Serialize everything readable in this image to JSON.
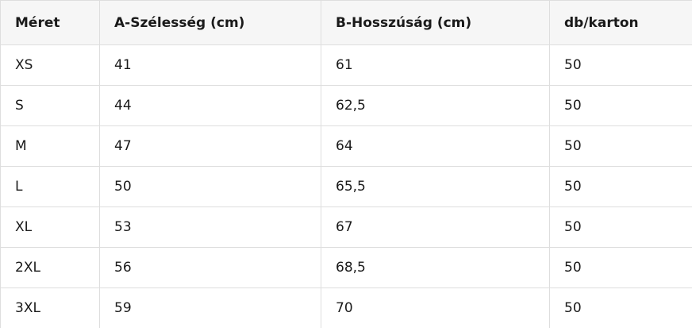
{
  "table": {
    "header": [
      "Méret",
      "A-Szélesség (cm)",
      "B-Hosszúság (cm)",
      "db/karton"
    ],
    "rows": [
      [
        "XS",
        "41",
        "61",
        "50"
      ],
      [
        "S",
        "44",
        "62,5",
        "50"
      ],
      [
        "M",
        "47",
        "64",
        "50"
      ],
      [
        "L",
        "50",
        "65,5",
        "50"
      ],
      [
        "XL",
        "53",
        "67",
        "50"
      ],
      [
        "2XL",
        "56",
        "68,5",
        "50"
      ],
      [
        "3XL",
        "59",
        "70",
        "50"
      ]
    ]
  }
}
